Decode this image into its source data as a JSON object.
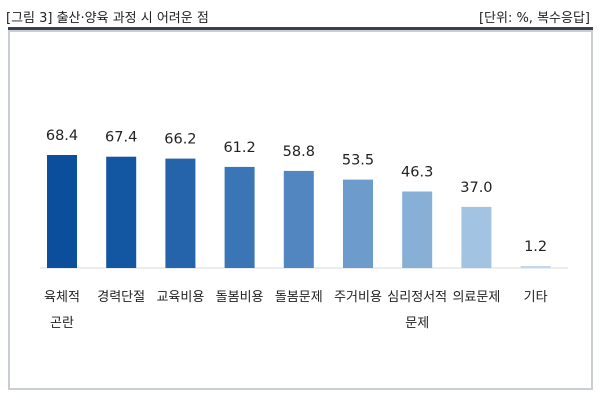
{
  "header": {
    "title": "[그림 3] 출산·양육 과정 시 어려운 점",
    "unit": "[단위: %, 복수응답]"
  },
  "chart_data": {
    "type": "bar",
    "title": "[그림 3] 출산·양육 과정 시 어려운 점",
    "unit_note": "[단위: %, 복수응답]",
    "categories": [
      [
        "육체적",
        "곤란"
      ],
      [
        "경력단절"
      ],
      [
        "교육비용"
      ],
      [
        "돌봄비용"
      ],
      [
        "돌봄문제"
      ],
      [
        "주거비용"
      ],
      [
        "심리정서적",
        "문제"
      ],
      [
        "의료문제"
      ],
      [
        "기타"
      ]
    ],
    "values": [
      68.4,
      67.4,
      66.2,
      61.2,
      58.8,
      53.5,
      46.3,
      37.0,
      1.2
    ],
    "value_labels": [
      "68.4",
      "67.4",
      "66.2",
      "61.2",
      "58.8",
      "53.5",
      "46.3",
      "37.0",
      "1.2"
    ],
    "bar_colors": [
      "#0b4f9c",
      "#1357a3",
      "#2564ab",
      "#3a76b6",
      "#5186c0",
      "#6d9ccc",
      "#88afd6",
      "#a3c3e2",
      "#c3d7ec"
    ],
    "ylim": [
      0,
      80
    ],
    "grid": false,
    "legend": "none"
  }
}
